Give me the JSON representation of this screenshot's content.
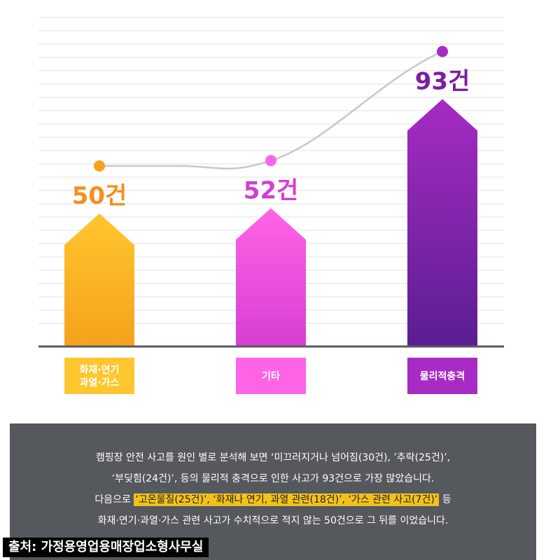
{
  "chart_data": {
    "type": "bar",
    "categories": [
      "화재·연기·과열·가스",
      "기타",
      "물리적충격"
    ],
    "category_label_lines": [
      [
        "화재·연기",
        "과열·가스"
      ],
      [
        "기타"
      ],
      [
        "물리적충격"
      ]
    ],
    "values": [
      50,
      52,
      93
    ],
    "value_labels": [
      "50건",
      "52건",
      "93건"
    ],
    "colors": {
      "bar1_top": "#ffc62f",
      "bar1_bottom": "#f5a21c",
      "bar2_top": "#ff64e6",
      "bar2_bottom": "#d63fd1",
      "bar3_top": "#a72bc4",
      "bar3_bottom": "#5a1e91",
      "label1": "#f58f1f",
      "label2": "#d43fd0",
      "label3": "#7b1fa2",
      "line": "#c8c8c8",
      "grid": "#ececec",
      "axis": "#555a63"
    },
    "overlay_line": true,
    "grid": true,
    "ylim": [
      0,
      100
    ]
  },
  "caption": {
    "line1": "캠핑장 안전 사고를 원인 별로 분석해 보면 ‘미끄러지거나 넘어짐(30건), ’추락(25건)’,",
    "line2": "‘부딪힘(24건)’, 등의 물리적 충격으로 인한 사고가 93건으로 가장 많았습니다.",
    "line3_prefix": "다음으로 ",
    "line3_highlight": "‘고온물질(25건)’, ‘화재나 연기, 과열 관련(18건)’, ‘가스 관련 사고(7건)’",
    "line3_suffix": " 등",
    "line4": "화재·연기·과열·가스 관련 사고가 수치적으로 적지 않는 50건으로 그 뒤를 이었습니다."
  },
  "source": "출처: 가정용영업용매장업소형사무실"
}
